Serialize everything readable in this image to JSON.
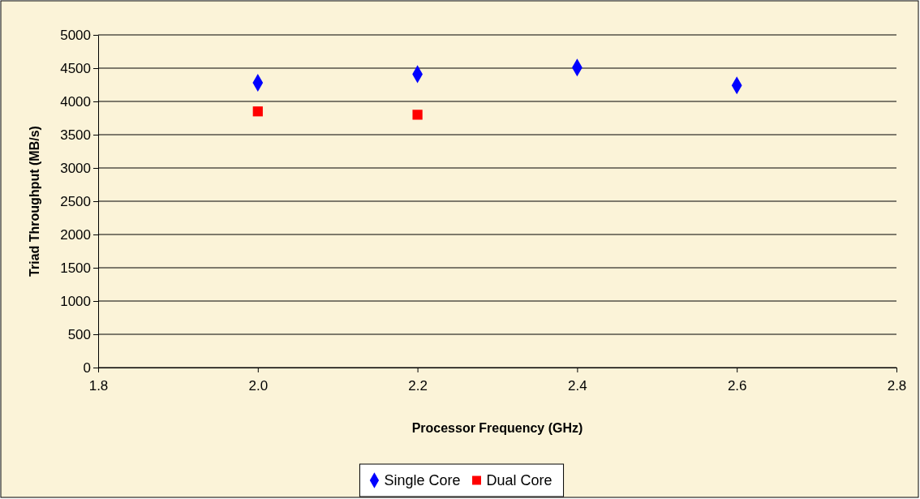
{
  "chart_data": {
    "type": "scatter",
    "xlabel": "Processor Frequency (GHz)",
    "ylabel": "Triad Throughput (MB/s)",
    "xlim": [
      1.8,
      2.8
    ],
    "xticks": [
      {
        "value": 1.8,
        "label": "1.8"
      },
      {
        "value": 2.0,
        "label": "2.0"
      },
      {
        "value": 2.2,
        "label": "2.2"
      },
      {
        "value": 2.4,
        "label": "2.4"
      },
      {
        "value": 2.6,
        "label": "2.6"
      },
      {
        "value": 2.8,
        "label": "2.8"
      }
    ],
    "ylim": [
      0,
      5000
    ],
    "yticks": [
      0,
      500,
      1000,
      1500,
      2000,
      2500,
      3000,
      3500,
      4000,
      4500,
      5000
    ],
    "grid": "y",
    "legend": "bottom",
    "series": [
      {
        "name": "Single Core",
        "color": "#0000ff",
        "marker": "diamond",
        "x": [
          2.0,
          2.2,
          2.4,
          2.6
        ],
        "values": [
          4280,
          4410,
          4510,
          4240
        ]
      },
      {
        "name": "Dual Core",
        "color": "#ff0000",
        "marker": "square",
        "x": [
          2.0,
          2.2
        ],
        "values": [
          3850,
          3800
        ]
      }
    ]
  }
}
